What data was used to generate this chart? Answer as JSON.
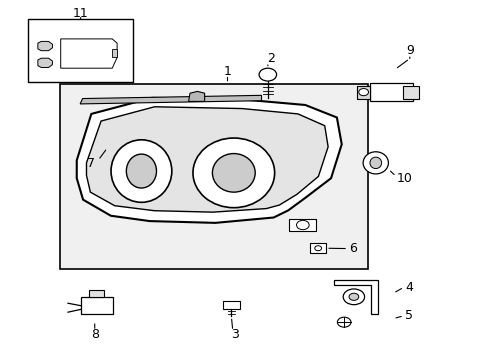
{
  "background_color": "#ffffff",
  "line_color": "#000000",
  "fig_width": 4.89,
  "fig_height": 3.6
}
